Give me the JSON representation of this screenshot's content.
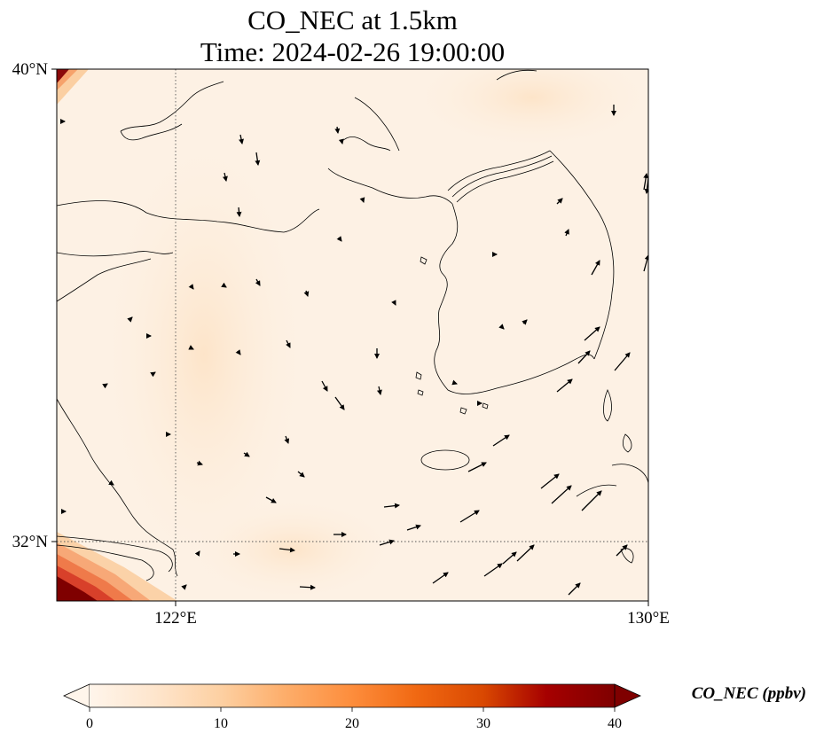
{
  "title": {
    "line1": "CO_NEC at 1.5km",
    "line2": "Time: 2024-02-26 19:00:00"
  },
  "axes": {
    "lat_ticks": [
      {
        "label": "40°N",
        "value": 40
      },
      {
        "label": "32°N",
        "value": 32
      }
    ],
    "lon_ticks": [
      {
        "label": "122°E",
        "value": 122
      },
      {
        "label": "130°E",
        "value": 130
      }
    ]
  },
  "colorbar": {
    "title": "CO_NEC (ppbv)",
    "ticks": [
      "0",
      "10",
      "20",
      "30",
      "40"
    ],
    "min": 0,
    "max": 40,
    "colormap": [
      "#fff5eb",
      "#fee6ce",
      "#fdd0a2",
      "#fdae6b",
      "#fd8d3c",
      "#f16913",
      "#d94801",
      "#a60000",
      "#7f0000"
    ]
  },
  "map_colors": {
    "background": "#fdf1e4",
    "high_corner": "#7f0000",
    "mid": "#ef7a4a",
    "low": "#fbd2a8"
  }
}
